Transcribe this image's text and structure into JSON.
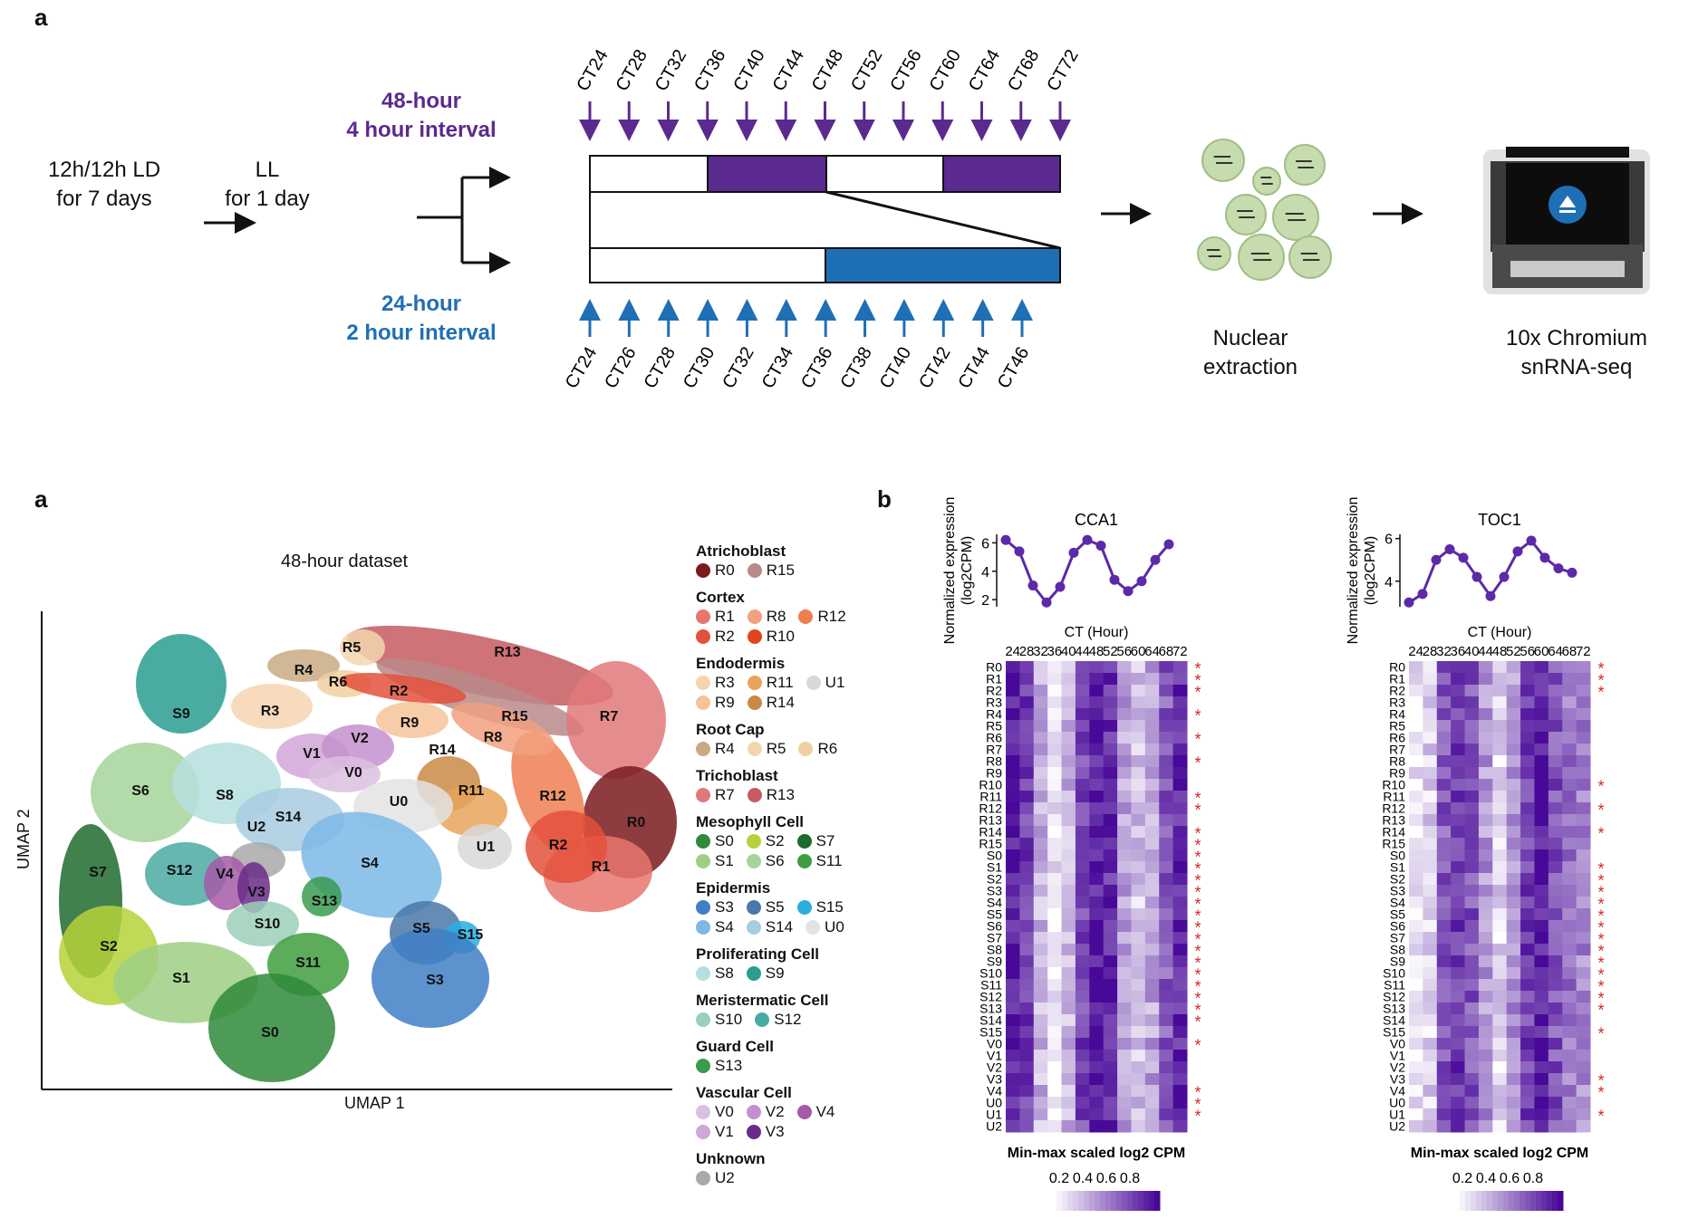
{
  "panel_top": {
    "letter": "a",
    "step1": [
      "12h/12h LD",
      "for 7 days"
    ],
    "step2": [
      "LL",
      "for 1 day"
    ],
    "branch48": {
      "line1": "48-hour",
      "line2": "4 hour interval",
      "color": "#5b2a8e"
    },
    "branch24": {
      "line1": "24-hour",
      "line2": "2 hour interval",
      "color": "#1f6fb5"
    },
    "ct_top": [
      "CT24",
      "CT28",
      "CT32",
      "CT36",
      "CT40",
      "CT44",
      "CT48",
      "CT52",
      "CT56",
      "CT60",
      "CT64",
      "CT68",
      "CT72"
    ],
    "ct_bottom": [
      "CT24",
      "CT26",
      "CT28",
      "CT30",
      "CT32",
      "CT34",
      "CT36",
      "CT38",
      "CT40",
      "CT42",
      "CT44",
      "CT46"
    ],
    "nuclear": [
      "Nuclear",
      "extraction"
    ],
    "chromium": [
      "10x Chromium",
      "snRNA-seq"
    ]
  },
  "panel_umap": {
    "letter": "a",
    "title": "48-hour dataset",
    "xlabel": "UMAP 1",
    "ylabel": "UMAP 2",
    "cluster_labels": [
      "R5",
      "R13",
      "R4",
      "R6",
      "R2",
      "S9",
      "R3",
      "R9",
      "R15",
      "R7",
      "V2",
      "R8",
      "V1",
      "V0",
      "R14",
      "R11",
      "S6",
      "S8",
      "S14",
      "U0",
      "R12",
      "U2",
      "R0",
      "U1",
      "R2",
      "S7",
      "S12",
      "V4",
      "S4",
      "R1",
      "V3",
      "S13",
      "S10",
      "S5",
      "S15",
      "S2",
      "S11",
      "S1",
      "S3",
      "S0"
    ]
  },
  "legend": [
    {
      "title": "Atrichoblast",
      "items": [
        [
          "R0",
          "#7a1a1f"
        ],
        [
          "R15",
          "#b88a8a"
        ]
      ]
    },
    {
      "title": "Cortex",
      "items": [
        [
          "R1",
          "#e8766c"
        ],
        [
          "R8",
          "#f1a080"
        ],
        [
          "R12",
          "#ee7f52"
        ],
        [
          "R2",
          "#e4503c"
        ],
        [
          "R10",
          "#e2441f"
        ]
      ]
    },
    {
      "title": "Endodermis",
      "items": [
        [
          "R3",
          "#f7d4b0"
        ],
        [
          "R11",
          "#e8a45a"
        ],
        [
          "U1",
          "#d8d8d8"
        ],
        [
          "R9",
          "#f4c39a"
        ],
        [
          "R14",
          "#c98a46"
        ]
      ]
    },
    {
      "title": "Root Cap",
      "items": [
        [
          "R4",
          "#c9aa83"
        ],
        [
          "R5",
          "#f2d7ae"
        ],
        [
          "R6",
          "#f0cfa0"
        ]
      ]
    },
    {
      "title": "Trichoblast",
      "items": [
        [
          "R7",
          "#e1797a"
        ],
        [
          "R13",
          "#c65b60"
        ]
      ]
    },
    {
      "title": "Mesophyll Cell",
      "items": [
        [
          "S0",
          "#2f8a3a"
        ],
        [
          "S2",
          "#b5d23a"
        ],
        [
          "S7",
          "#1f6b2e"
        ],
        [
          "S1",
          "#9fcf84"
        ],
        [
          "S6",
          "#a6d49a"
        ],
        [
          "S11",
          "#3f9e3f"
        ]
      ]
    },
    {
      "title": "Epidermis",
      "items": [
        [
          "S3",
          "#3f7fc6"
        ],
        [
          "S5",
          "#4a78a8"
        ],
        [
          "S15",
          "#29aee0"
        ],
        [
          "S4",
          "#7db8e6"
        ],
        [
          "S14",
          "#a7cde0"
        ],
        [
          "U0",
          "#e3e3e3"
        ]
      ]
    },
    {
      "title": "Proliferating Cell",
      "items": [
        [
          "S8",
          "#b5dfdf"
        ],
        [
          "S9",
          "#2a9d8f"
        ]
      ]
    },
    {
      "title": "Meristermatic Cell",
      "items": [
        [
          "S10",
          "#9ccfb8"
        ],
        [
          "S12",
          "#4aaaa2"
        ]
      ]
    },
    {
      "title": "Guard Cell",
      "items": [
        [
          "S13",
          "#3a9b4f"
        ]
      ]
    },
    {
      "title": "Vascular Cell",
      "items": [
        [
          "V0",
          "#d9c0e0"
        ],
        [
          "V2",
          "#c490cf"
        ],
        [
          "V4",
          "#a65aa8"
        ],
        [
          "V1",
          "#d1a6d8"
        ],
        [
          "V3",
          "#6a2b8a"
        ]
      ]
    },
    {
      "title": "Unknown",
      "items": [
        [
          "U2",
          "#a9a9a9"
        ]
      ]
    }
  ],
  "panel_b": {
    "letter": "b",
    "genes": [
      "CCA1",
      "TOC1"
    ],
    "ylabel": "Normalized expression",
    "ylabel2": "(log2CPM)",
    "xlabel": "CT (Hour)",
    "ct_labels": [
      "24",
      "28",
      "32",
      "36",
      "40",
      "44",
      "48",
      "52",
      "56",
      "60",
      "64",
      "68",
      "72"
    ],
    "row_labels": [
      "R0",
      "R1",
      "R2",
      "R3",
      "R4",
      "R5",
      "R6",
      "R7",
      "R8",
      "R9",
      "R10",
      "R11",
      "R12",
      "R13",
      "R14",
      "R15",
      "S0",
      "S1",
      "S2",
      "S3",
      "S4",
      "S5",
      "S6",
      "S7",
      "S8",
      "S9",
      "S10",
      "S11",
      "S12",
      "S13",
      "S14",
      "S15",
      "V0",
      "V1",
      "V2",
      "V3",
      "V4",
      "U0",
      "U1",
      "U2"
    ],
    "colorbar_title": "Min-max scaled log2 CPM",
    "colorbar_ticks": [
      "0.2",
      "0.4",
      "0.6",
      "0.8"
    ],
    "star": "*",
    "star_color": "#d62728"
  },
  "chart_data": [
    {
      "type": "line",
      "title": "CCA1",
      "xlabel": "CT (Hour)",
      "ylabel": "Normalized expression (log2CPM)",
      "x": [
        24,
        28,
        32,
        36,
        40,
        44,
        48,
        52,
        56,
        60,
        64,
        68,
        72
      ],
      "values": [
        6.2,
        5.4,
        3.0,
        1.8,
        2.9,
        5.3,
        6.2,
        5.8,
        3.4,
        2.6,
        3.3,
        4.8,
        5.9
      ],
      "ylim": [
        1.5,
        6.6
      ],
      "yticks": [
        2,
        4,
        6
      ]
    },
    {
      "type": "line",
      "title": "TOC1",
      "xlabel": "CT (Hour)",
      "ylabel": "Normalized expression (log2CPM)",
      "x": [
        24,
        28,
        32,
        36,
        40,
        44,
        48,
        52,
        56,
        60,
        64,
        68,
        72
      ],
      "values": [
        3.0,
        3.4,
        5.0,
        5.5,
        5.1,
        4.2,
        3.3,
        4.2,
        5.4,
        5.9,
        5.1,
        4.6,
        4.4
      ],
      "ylim": [
        2.8,
        6.2
      ],
      "yticks": [
        4,
        6
      ]
    }
  ]
}
